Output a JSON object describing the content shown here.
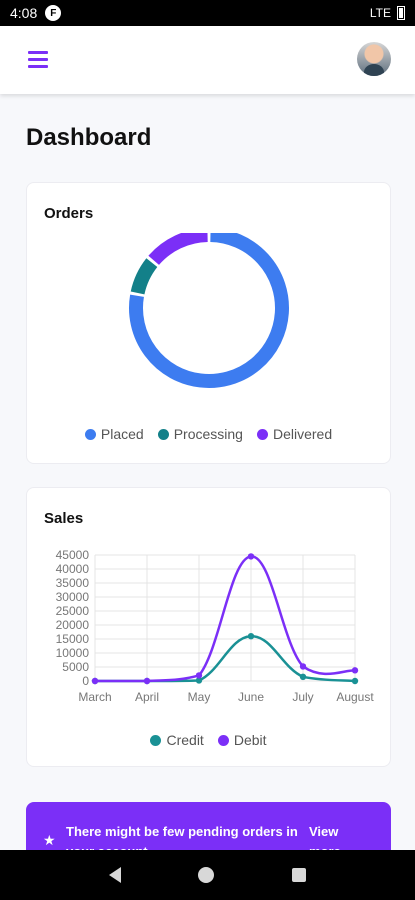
{
  "status_bar": {
    "time": "4:08",
    "notification_badge": "F",
    "network": "LTE"
  },
  "header": {
    "menu_icon": "menu-icon",
    "avatar_icon": "user-avatar"
  },
  "page": {
    "title": "Dashboard"
  },
  "colors": {
    "accent": "#7b2ff7",
    "placed": "#3d7cf0",
    "processing": "#138089",
    "delivered": "#7b2ff7",
    "credit": "#1a9195",
    "debit": "#7b2ff7"
  },
  "orders": {
    "title": "Orders",
    "legend": [
      "Placed",
      "Processing",
      "Delivered"
    ]
  },
  "sales": {
    "title": "Sales",
    "legend": [
      "Credit",
      "Debit"
    ]
  },
  "chart_data": [
    {
      "type": "pie",
      "variant": "doughnut",
      "labels": [
        "Placed",
        "Processing",
        "Delivered"
      ],
      "values": [
        78,
        8,
        14
      ],
      "colors": [
        "#3d7cf0",
        "#138089",
        "#7b2ff7"
      ],
      "legend": "bottom"
    },
    {
      "type": "line",
      "categories": [
        "March",
        "April",
        "May",
        "June",
        "July",
        "August"
      ],
      "series": [
        {
          "name": "Credit",
          "values": [
            0,
            0,
            200,
            16000,
            1500,
            0
          ],
          "color": "#1a9195"
        },
        {
          "name": "Debit",
          "values": [
            0,
            0,
            2000,
            44500,
            5200,
            3800
          ],
          "color": "#7b2ff7"
        }
      ],
      "yticks": [
        "45000",
        "40000",
        "35000",
        "30000",
        "25000",
        "20000",
        "15000",
        "10000",
        "5000",
        "0"
      ],
      "ylim": [
        0,
        45000
      ],
      "grid": true,
      "legend": "bottom",
      "curve": "smooth"
    }
  ],
  "banner": {
    "icon": "star-icon",
    "text": "There might be few pending orders in your account",
    "link": "View more"
  },
  "nav_bar": {
    "icons": [
      "back-icon",
      "home-icon",
      "recent-apps-icon"
    ]
  }
}
